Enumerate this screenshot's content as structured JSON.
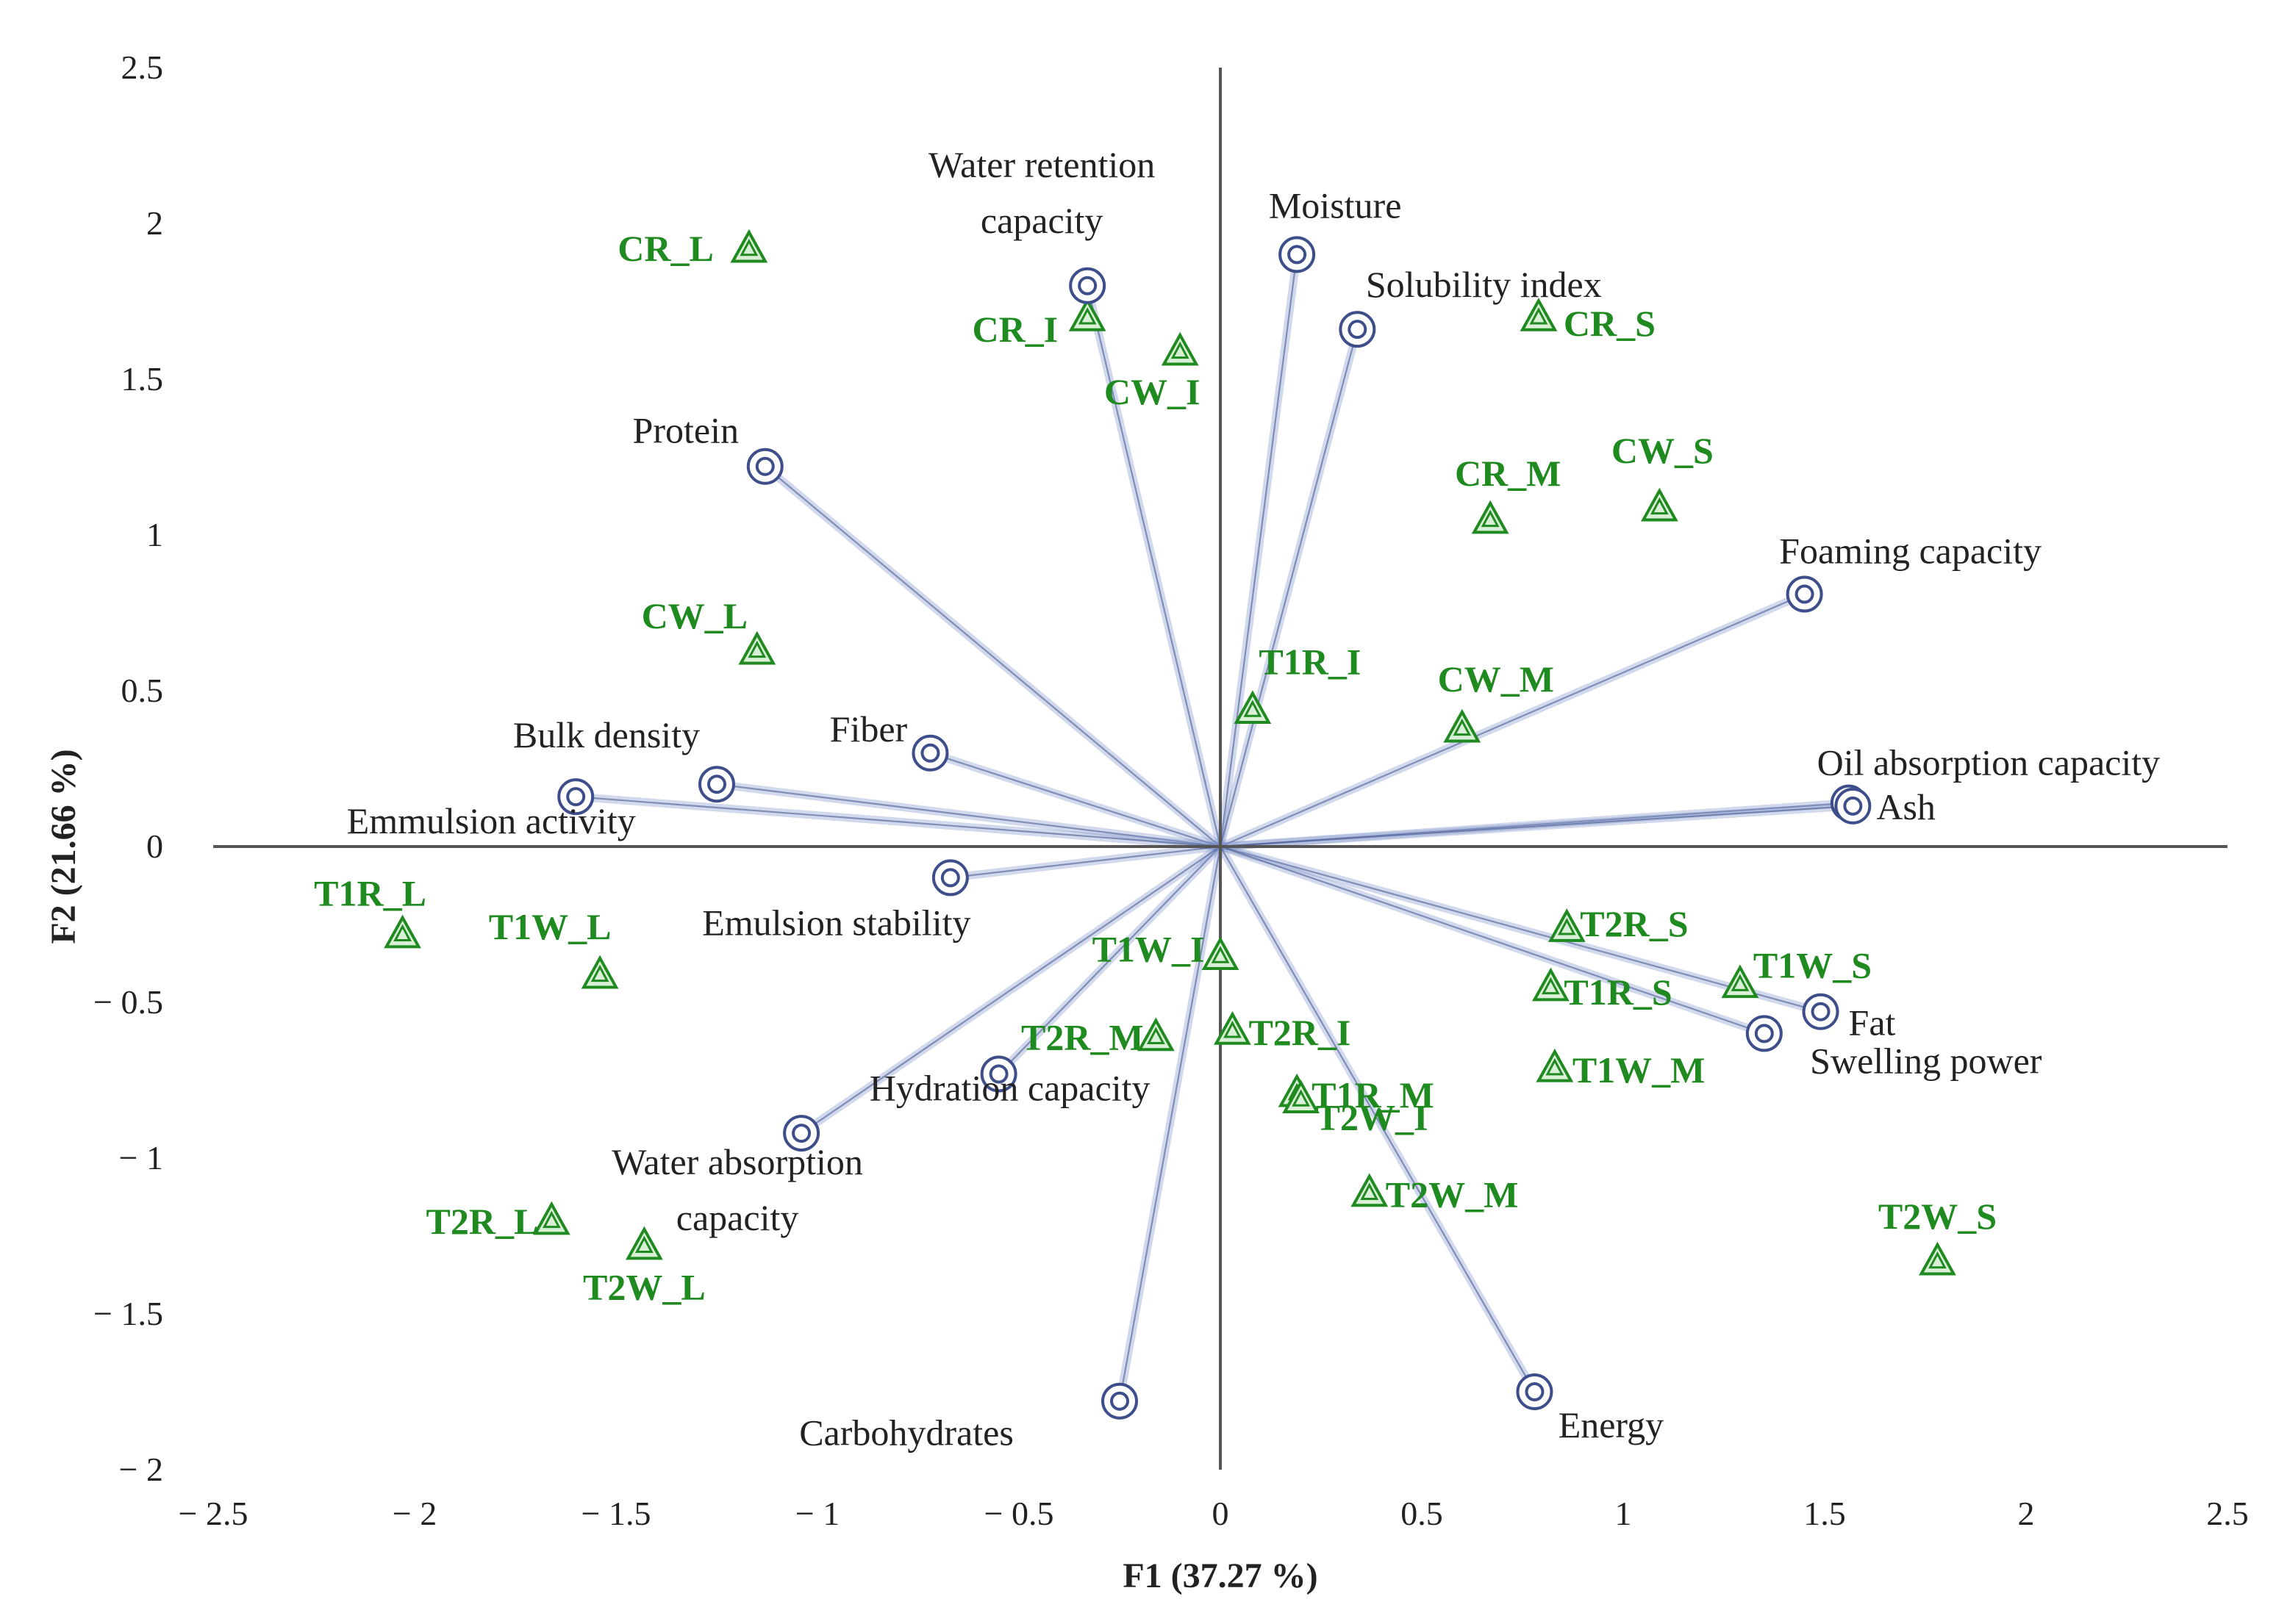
{
  "chart_data": {
    "type": "scatter",
    "subtype": "biplot",
    "xlabel": "F1 (37.27 %)",
    "ylabel": "F2 (21.66 %)",
    "xlim": [
      -2.5,
      2.5
    ],
    "ylim": [
      -2,
      2.5
    ],
    "xticks": [
      -2.5,
      -2,
      -1.5,
      -1,
      -0.5,
      0,
      0.5,
      1,
      1.5,
      2,
      2.5
    ],
    "yticks": [
      -2,
      -1.5,
      -1,
      -0.5,
      0,
      0.5,
      1,
      1.5,
      2,
      2.5
    ],
    "xtick_labels": [
      "− 2.5",
      "− 2",
      "− 1.5",
      "− 1",
      "− 0.5",
      "0",
      "0.5",
      "1",
      "1.5",
      "2",
      "2.5"
    ],
    "ytick_labels": [
      "− 2",
      "− 1.5",
      "− 1",
      "− 0.5",
      "0",
      "0.5",
      "1",
      "1.5",
      "2",
      "2.5"
    ],
    "grid": false,
    "colors": {
      "variables": "#3d4e8a",
      "vectors": "#7f93c9",
      "observations": "#1f8a1f",
      "axes": "#555555"
    },
    "variables": [
      {
        "label": "Water retention capacity",
        "lines": [
          "Water retention",
          "capacity"
        ],
        "x": -0.33,
        "y": 1.8
      },
      {
        "label": "Moisture",
        "x": 0.19,
        "y": 1.9
      },
      {
        "label": "Solubility index",
        "x": 0.34,
        "y": 1.66
      },
      {
        "label": "Protein",
        "x": -1.13,
        "y": 1.22
      },
      {
        "label": "Foaming capacity",
        "x": 1.45,
        "y": 0.81
      },
      {
        "label": "Fiber",
        "x": -0.72,
        "y": 0.3
      },
      {
        "label": "Bulk density",
        "x": -1.25,
        "y": 0.2
      },
      {
        "label": "Emmulsion activity",
        "x": -1.6,
        "y": 0.16
      },
      {
        "label": "Oil absorption capacity",
        "x": 1.56,
        "y": 0.14
      },
      {
        "label": "Ash",
        "x": 1.57,
        "y": 0.13
      },
      {
        "label": "Emulsion stability",
        "x": -0.67,
        "y": -0.1
      },
      {
        "label": "Fat",
        "x": 1.49,
        "y": -0.53
      },
      {
        "label": "Swelling power",
        "x": 1.35,
        "y": -0.6
      },
      {
        "label": "Hydration capacity",
        "x": -0.55,
        "y": -0.73
      },
      {
        "label": "Water absorption capacity",
        "lines": [
          "Water absorption",
          "capacity"
        ],
        "x": -1.04,
        "y": -0.92
      },
      {
        "label": "Carbohydrates",
        "x": -0.25,
        "y": -1.78
      },
      {
        "label": "Energy",
        "x": 0.78,
        "y": -1.75
      }
    ],
    "observations": [
      {
        "label": "CR_L",
        "x": -1.17,
        "y": 1.92
      },
      {
        "label": "CR_I",
        "x": -0.33,
        "y": 1.7
      },
      {
        "label": "CW_I",
        "x": -0.1,
        "y": 1.59
      },
      {
        "label": "CR_S",
        "x": 0.79,
        "y": 1.7
      },
      {
        "label": "CR_M",
        "x": 0.67,
        "y": 1.05
      },
      {
        "label": "CW_S",
        "x": 1.09,
        "y": 1.09
      },
      {
        "label": "CW_L",
        "x": -1.15,
        "y": 0.63
      },
      {
        "label": "T1R_I",
        "x": 0.08,
        "y": 0.44
      },
      {
        "label": "CW_M",
        "x": 0.6,
        "y": 0.38
      },
      {
        "label": "T1R_L",
        "x": -2.03,
        "y": -0.28
      },
      {
        "label": "T1W_L",
        "x": -1.54,
        "y": -0.41
      },
      {
        "label": "T1W_I",
        "x": 0.0,
        "y": -0.35
      },
      {
        "label": "T2R_S",
        "x": 0.86,
        "y": -0.26
      },
      {
        "label": "T1R_S",
        "x": 0.82,
        "y": -0.45
      },
      {
        "label": "T1W_S",
        "x": 1.29,
        "y": -0.44
      },
      {
        "label": "T2R_M",
        "x": -0.16,
        "y": -0.61
      },
      {
        "label": "T2R_I",
        "x": 0.03,
        "y": -0.59
      },
      {
        "label": "T1R_M",
        "x": 0.19,
        "y": -0.79
      },
      {
        "label": "T2W_I",
        "x": 0.2,
        "y": -0.81
      },
      {
        "label": "T1W_M",
        "x": 0.83,
        "y": -0.71
      },
      {
        "label": "T2W_M",
        "x": 0.37,
        "y": -1.11
      },
      {
        "label": "T2R_L",
        "x": -1.66,
        "y": -1.2
      },
      {
        "label": "T2W_L",
        "x": -1.43,
        "y": -1.28
      },
      {
        "label": "T2W_S",
        "x": 1.78,
        "y": -1.33
      }
    ]
  }
}
